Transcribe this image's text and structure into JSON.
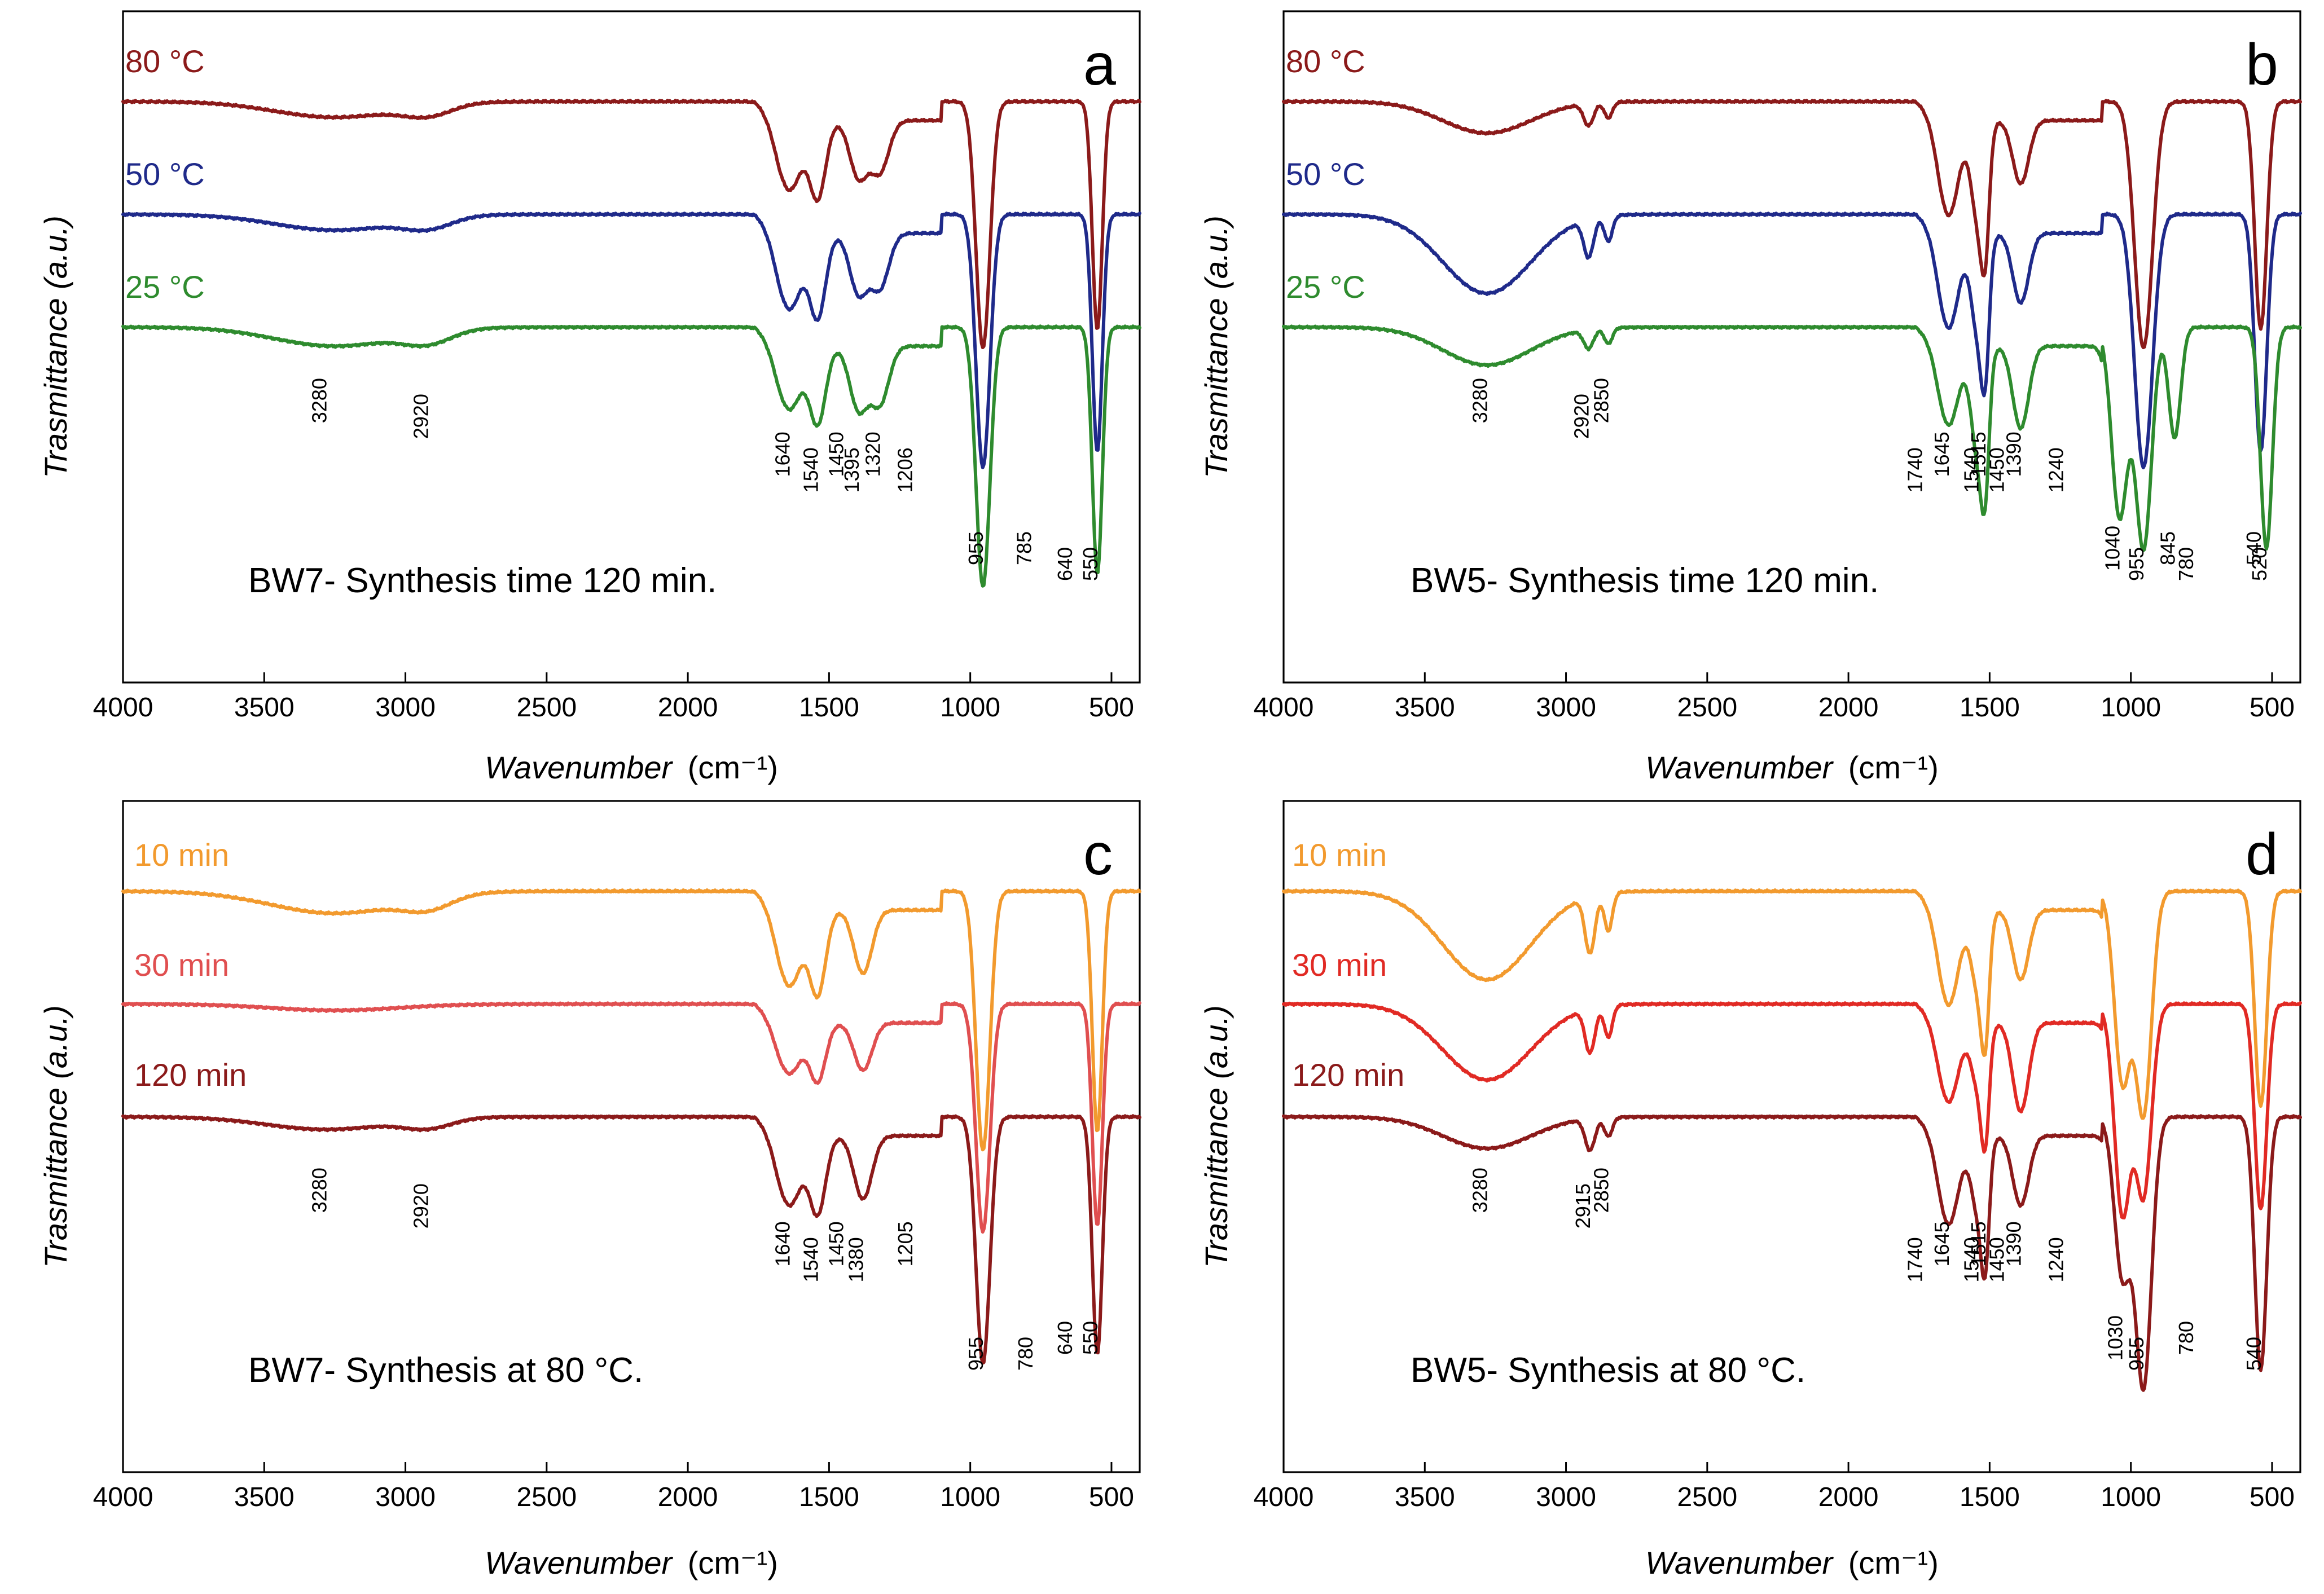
{
  "chart_data": [
    {
      "type": "line",
      "panel": "a",
      "caption": "BW7- Synthesis time 120 min.",
      "xlabel_main": "Wavenumber",
      "xlabel_unit": "(cm⁻¹)",
      "ylabel": "Trasmittance (a.u.)",
      "xlim": [
        4000,
        400
      ],
      "xticks": [
        4000,
        3500,
        3000,
        2500,
        2000,
        1500,
        1000,
        500
      ],
      "series": [
        {
          "name": "80 °C",
          "color": "#8b1a1a",
          "offset": 0.0,
          "bands": [
            [
              3250,
              0.05,
              300
            ],
            [
              2920,
              0.035,
              120
            ],
            [
              1640,
              0.22,
              60
            ],
            [
              1540,
              0.24,
              40
            ],
            [
              1395,
              0.18,
              45
            ],
            [
              1320,
              0.16,
              45
            ],
            [
              955,
              0.78,
              35
            ],
            [
              550,
              0.72,
              25
            ]
          ]
        },
        {
          "name": "50 °C",
          "color": "#1f2a8a",
          "offset": 0.25,
          "bands": [
            [
              3250,
              0.05,
              300
            ],
            [
              2920,
              0.035,
              120
            ],
            [
              1640,
              0.24,
              60
            ],
            [
              1540,
              0.26,
              40
            ],
            [
              1395,
              0.19,
              45
            ],
            [
              1320,
              0.17,
              45
            ],
            [
              955,
              0.8,
              35
            ],
            [
              550,
              0.75,
              25
            ]
          ]
        },
        {
          "name": "25 °C",
          "color": "#2e8b2e",
          "offset": 0.5,
          "bands": [
            [
              3250,
              0.06,
              300
            ],
            [
              2920,
              0.04,
              120
            ],
            [
              1640,
              0.2,
              60
            ],
            [
              1540,
              0.24,
              40
            ],
            [
              1395,
              0.2,
              45
            ],
            [
              1320,
              0.18,
              45
            ],
            [
              955,
              0.82,
              35
            ],
            [
              550,
              0.78,
              25
            ]
          ]
        }
      ],
      "peaks": [
        "3280",
        "2920",
        "1640",
        "1540",
        "1450",
        "1395",
        "1320",
        "1206",
        "785",
        "640",
        "955",
        "550"
      ],
      "peak_positions": [
        3280,
        2920,
        1640,
        1540,
        1450,
        1395,
        1320,
        1206,
        785,
        640,
        955,
        550
      ]
    },
    {
      "type": "line",
      "panel": "b",
      "caption": "BW5- Synthesis time 120 min.",
      "xlabel_main": "Wavenumber",
      "xlabel_unit": "(cm⁻¹)",
      "ylabel": "Trasmittance (a.u.)",
      "xlim": [
        4000,
        400
      ],
      "xticks": [
        4000,
        3500,
        3000,
        2500,
        2000,
        1500,
        1000,
        500
      ],
      "series": [
        {
          "name": "80 °C",
          "color": "#8b1a1a",
          "offset": 0.0,
          "bands": [
            [
              3280,
              0.1,
              220
            ],
            [
              2920,
              0.07,
              25
            ],
            [
              2850,
              0.05,
              20
            ],
            [
              1645,
              0.3,
              50
            ],
            [
              1540,
              0.32,
              35
            ],
            [
              1515,
              0.28,
              20
            ],
            [
              1390,
              0.2,
              40
            ],
            [
              955,
              0.78,
              45
            ],
            [
              540,
              0.72,
              30
            ]
          ]
        },
        {
          "name": "50 °C",
          "color": "#1f2a8a",
          "offset": 0.25,
          "bands": [
            [
              3280,
              0.25,
              220
            ],
            [
              2920,
              0.12,
              25
            ],
            [
              2850,
              0.08,
              20
            ],
            [
              1645,
              0.3,
              50
            ],
            [
              1540,
              0.32,
              35
            ],
            [
              1515,
              0.3,
              20
            ],
            [
              1390,
              0.22,
              40
            ],
            [
              955,
              0.8,
              45
            ],
            [
              540,
              0.75,
              30
            ]
          ]
        },
        {
          "name": "25 °C",
          "color": "#2e8b2e",
          "offset": 0.5,
          "bands": [
            [
              3280,
              0.12,
              220
            ],
            [
              2920,
              0.06,
              25
            ],
            [
              2850,
              0.05,
              20
            ],
            [
              1645,
              0.25,
              50
            ],
            [
              1540,
              0.35,
              35
            ],
            [
              1515,
              0.3,
              20
            ],
            [
              1390,
              0.26,
              40
            ],
            [
              1040,
              0.6,
              40
            ],
            [
              955,
              0.7,
              40
            ],
            [
              845,
              0.35,
              30
            ],
            [
              520,
              0.7,
              30
            ]
          ]
        }
      ],
      "peaks": [
        "3280",
        "2920",
        "2850",
        "1740",
        "1645",
        "1540",
        "1515",
        "1450",
        "1390",
        "1240",
        "1040",
        "955",
        "845",
        "780",
        "540",
        "520"
      ],
      "peak_positions": [
        3280,
        2920,
        2850,
        1740,
        1645,
        1540,
        1515,
        1450,
        1390,
        1240,
        1040,
        955,
        845,
        780,
        540,
        520
      ]
    },
    {
      "type": "line",
      "panel": "c",
      "caption": "BW7- Synthesis at 80 °C.",
      "xlabel_main": "Wavenumber",
      "xlabel_unit": "(cm⁻¹)",
      "ylabel": "Trasmittance (a.u.)",
      "xlim": [
        4000,
        400
      ],
      "xticks": [
        4000,
        3500,
        3000,
        2500,
        2000,
        1500,
        1000,
        500
      ],
      "series": [
        {
          "name": "10 min",
          "color": "#f29a2e",
          "offset": 0.0,
          "bands": [
            [
              3250,
              0.07,
              320
            ],
            [
              2920,
              0.04,
              120
            ],
            [
              1640,
              0.24,
              60
            ],
            [
              1540,
              0.26,
              40
            ],
            [
              1380,
              0.2,
              45
            ],
            [
              955,
              0.82,
              35
            ],
            [
              550,
              0.76,
              25
            ]
          ]
        },
        {
          "name": "30 min",
          "color": "#e04f50",
          "offset": 0.25,
          "bands": [
            [
              3250,
              0.02,
              320
            ],
            [
              1640,
              0.16,
              60
            ],
            [
              1540,
              0.18,
              40
            ],
            [
              1380,
              0.15,
              45
            ],
            [
              955,
              0.72,
              35
            ],
            [
              550,
              0.7,
              25
            ]
          ]
        },
        {
          "name": "120 min",
          "color": "#8b1a1a",
          "offset": 0.5,
          "bands": [
            [
              3280,
              0.04,
              300
            ],
            [
              2920,
              0.03,
              120
            ],
            [
              1640,
              0.22,
              60
            ],
            [
              1540,
              0.24,
              40
            ],
            [
              1380,
              0.2,
              45
            ],
            [
              955,
              0.78,
              35
            ],
            [
              550,
              0.75,
              25
            ]
          ]
        }
      ],
      "peaks": [
        "3280",
        "2920",
        "1640",
        "1540",
        "1450",
        "1380",
        "1205",
        "780",
        "640",
        "955",
        "550"
      ],
      "peak_positions": [
        3280,
        2920,
        1640,
        1540,
        1450,
        1380,
        1205,
        780,
        640,
        955,
        550
      ]
    },
    {
      "type": "line",
      "panel": "d",
      "caption": "BW5- Synthesis at 80 °C.",
      "xlabel_main": "Wavenumber",
      "xlabel_unit": "(cm⁻¹)",
      "ylabel": "Trasmittance (a.u.)",
      "xlim": [
        4000,
        400
      ],
      "xticks": [
        4000,
        3500,
        3000,
        2500,
        2000,
        1500,
        1000,
        500
      ],
      "series": [
        {
          "name": "10 min",
          "color": "#f29a2e",
          "offset": 0.0,
          "bands": [
            [
              3280,
              0.28,
              220
            ],
            [
              2915,
              0.18,
              25
            ],
            [
              2850,
              0.12,
              20
            ],
            [
              1645,
              0.3,
              50
            ],
            [
              1540,
              0.25,
              35
            ],
            [
              1515,
              0.3,
              20
            ],
            [
              1390,
              0.22,
              40
            ],
            [
              1030,
              0.6,
              40
            ],
            [
              955,
              0.7,
              40
            ],
            [
              540,
              0.68,
              30
            ]
          ]
        },
        {
          "name": "30 min",
          "color": "#e12a24",
          "offset": 0.25,
          "bands": [
            [
              3280,
              0.24,
              220
            ],
            [
              2915,
              0.14,
              25
            ],
            [
              2850,
              0.1,
              20
            ],
            [
              1645,
              0.25,
              50
            ],
            [
              1540,
              0.2,
              35
            ],
            [
              1515,
              0.28,
              20
            ],
            [
              1390,
              0.28,
              40
            ],
            [
              1030,
              0.66,
              40
            ],
            [
              955,
              0.6,
              40
            ],
            [
              540,
              0.65,
              30
            ]
          ]
        },
        {
          "name": "120 min",
          "color": "#8b1a1a",
          "offset": 0.5,
          "bands": [
            [
              3280,
              0.1,
              220
            ],
            [
              2915,
              0.1,
              25
            ],
            [
              2850,
              0.06,
              20
            ],
            [
              1645,
              0.28,
              50
            ],
            [
              1540,
              0.24,
              35
            ],
            [
              1515,
              0.3,
              20
            ],
            [
              1390,
              0.22,
              40
            ],
            [
              1030,
              0.5,
              40
            ],
            [
              955,
              0.85,
              40
            ],
            [
              540,
              0.8,
              30
            ]
          ]
        }
      ],
      "peaks": [
        "3280",
        "2915",
        "2850",
        "1740",
        "1645",
        "1540",
        "1515",
        "1450",
        "1390",
        "1240",
        "1030",
        "955",
        "780",
        "540"
      ],
      "peak_positions": [
        3280,
        2915,
        2850,
        1740,
        1645,
        1540,
        1515,
        1450,
        1390,
        1240,
        1030,
        955,
        780,
        540
      ]
    }
  ]
}
